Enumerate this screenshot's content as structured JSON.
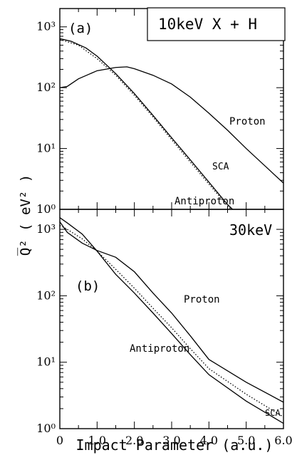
{
  "ylabel": "Q̅² ( eV² )",
  "xlabel": "Impact Parameter (a.u.)",
  "x_tick_labels": [
    "0",
    "1.0",
    "2.0",
    "3.0",
    "4.0",
    "5.0",
    "6.0"
  ],
  "colors": {
    "axis": "#000000",
    "line": "#000000"
  },
  "chart_data": [
    {
      "type": "line",
      "panel_label": "(a)",
      "title": "10keV X + H",
      "xlim": [
        0,
        6
      ],
      "ylim": [
        1,
        2000
      ],
      "yscale": "log",
      "y_tick_labels": [
        "10⁰",
        "10¹",
        "10²",
        "10³"
      ],
      "series": [
        {
          "name": "Proton",
          "style": "solid",
          "x": [
            0,
            0.2,
            0.5,
            1.0,
            1.5,
            1.8,
            2.0,
            2.5,
            3.0,
            3.5,
            4.0,
            4.5,
            5.0,
            5.5,
            6.0
          ],
          "y": [
            100,
            105,
            140,
            190,
            215,
            220,
            205,
            160,
            115,
            70,
            38,
            20,
            10,
            5.2,
            2.7
          ]
        },
        {
          "name": "SCA",
          "style": "dotted",
          "x": [
            0,
            0.5,
            1.0,
            1.5,
            2.0,
            2.5,
            3.0,
            3.5,
            4.0,
            4.5,
            4.75
          ],
          "y": [
            620,
            500,
            300,
            160,
            75,
            33,
            14,
            6,
            2.6,
            1.15,
            0.8
          ]
        },
        {
          "name": "Antiproton",
          "style": "solid",
          "x": [
            0,
            0.3,
            0.7,
            1.0,
            1.5,
            2.0,
            2.5,
            3.0,
            3.5,
            4.0,
            4.5,
            4.8
          ],
          "y": [
            640,
            580,
            450,
            330,
            170,
            80,
            35,
            15,
            6.5,
            2.8,
            1.2,
            0.8
          ]
        }
      ],
      "annotations": [
        "Proton",
        "SCA",
        "Antiproton"
      ]
    },
    {
      "type": "line",
      "panel_label": "(b)",
      "title": "30keV",
      "xlim": [
        0,
        6
      ],
      "ylim": [
        1,
        2000
      ],
      "yscale": "log",
      "y_tick_labels": [
        "10⁰",
        "10¹",
        "10²",
        "10³"
      ],
      "series": [
        {
          "name": "Proton",
          "style": "solid",
          "x": [
            0,
            0.2,
            0.6,
            1.0,
            1.5,
            2.0,
            2.5,
            3.0,
            3.5,
            4.0,
            5.0,
            6.0
          ],
          "y": [
            1300,
            900,
            620,
            480,
            380,
            230,
            110,
            55,
            25,
            11,
            5,
            2.5
          ]
        },
        {
          "name": "SCA",
          "style": "dotted",
          "x": [
            0,
            0.2,
            0.6,
            1.0,
            1.5,
            2.0,
            2.5,
            3.0,
            3.5,
            4.0,
            5.0,
            6.0
          ],
          "y": [
            1150,
            1000,
            720,
            470,
            250,
            130,
            65,
            33,
            16,
            8,
            3.3,
            1.5
          ]
        },
        {
          "name": "Antiproton",
          "style": "solid",
          "x": [
            0,
            0.2,
            0.6,
            1.0,
            1.5,
            2.0,
            2.5,
            3.0,
            3.5,
            4.0,
            5.0,
            6.0
          ],
          "y": [
            1500,
            1250,
            850,
            470,
            210,
            110,
            55,
            27,
            13,
            6.5,
            2.6,
            1.2
          ]
        }
      ],
      "annotations": [
        "Proton",
        "SCA",
        "Antiproton"
      ]
    }
  ]
}
